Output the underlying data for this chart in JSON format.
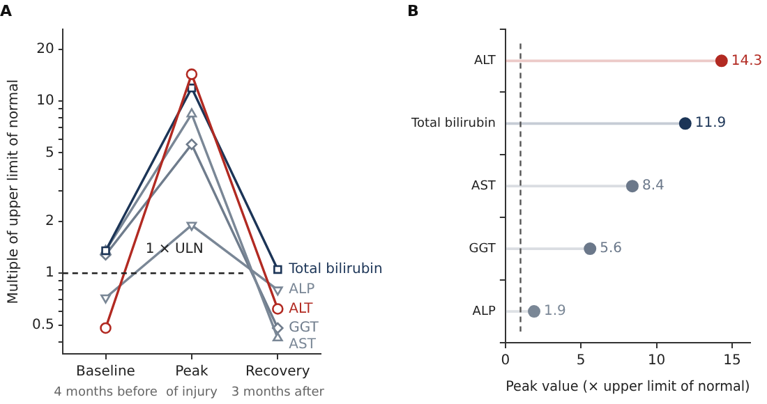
{
  "chart_data": [
    {
      "type": "line",
      "title": "A",
      "categories": [
        "Baseline",
        "Peak",
        "Recovery"
      ],
      "ylabel": "Multiple of upper limit of normal",
      "legend": "right",
      "log": "y",
      "ylim": [
        0.34,
        26
      ],
      "yticks": [
        {
          "value": 0.4,
          "label": null
        },
        0.5,
        {
          "value": 0.6,
          "label": null
        },
        {
          "value": 0.7,
          "label": null
        },
        {
          "value": 0.8,
          "label": null
        },
        {
          "value": 0.9,
          "label": null
        },
        1,
        2,
        {
          "value": 3,
          "label": null
        },
        {
          "value": 4,
          "label": null
        },
        5,
        {
          "value": 6,
          "label": null
        },
        {
          "value": 7,
          "label": null
        },
        {
          "value": 8,
          "label": null
        },
        {
          "value": 9,
          "label": null
        },
        10,
        20
      ],
      "ref_lines": [
        {
          "axis": "y",
          "value": 1,
          "label": "1 × ULN",
          "color": "#222222",
          "line_style": "dashed"
        }
      ],
      "annotations": [
        "4 months before",
        "of injury",
        "3 months after"
      ],
      "series": [
        {
          "name": "ALT",
          "color": "#b22a22",
          "marker": "circle",
          "values": [
            0.48,
            14.3,
            0.62
          ]
        },
        {
          "name": "Total bilirubin",
          "color": "#1c3557",
          "marker": "square",
          "values": [
            1.35,
            11.9,
            1.05
          ]
        },
        {
          "name": "AST",
          "color": "#7a8796",
          "marker": "triangle",
          "values": [
            1.35,
            8.4,
            0.42
          ]
        },
        {
          "name": "GGT",
          "color": "#6f7c8c",
          "marker": "diamond",
          "values": [
            1.28,
            5.6,
            0.48
          ]
        },
        {
          "name": "ALP",
          "color": "#7a8796",
          "marker": "triangle_down",
          "values": [
            0.72,
            1.9,
            0.8
          ]
        }
      ]
    },
    {
      "type": "lollipop",
      "title": "B",
      "orientation": "horizontal",
      "categories": [
        "ALT",
        "Total bilirubin",
        "AST",
        "GGT",
        "ALP"
      ],
      "values": [
        14.3,
        11.9,
        8.4,
        5.6,
        1.9
      ],
      "colors": [
        "#b22a22",
        "#1c3557",
        "#6b788a",
        "#6b788a",
        "#7a8796"
      ],
      "xlim": [
        0,
        16.2
      ],
      "xticks": [
        0,
        5,
        10,
        15
      ],
      "xlabel": "Peak value (× upper limit of normal)",
      "data_labels": true,
      "ref_lines": [
        {
          "axis": "x",
          "value": 1,
          "color": "#555555",
          "line_style": "dashed"
        }
      ]
    }
  ]
}
